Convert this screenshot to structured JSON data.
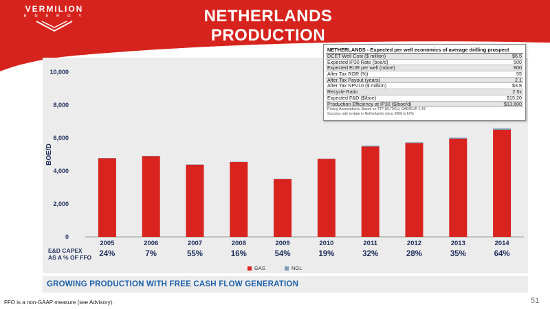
{
  "header": {
    "logo_name": "VERMILION",
    "logo_sub": "E N E R G Y",
    "title": "NETHERLANDS PRODUCTION"
  },
  "table": {
    "title": "NETHERLANDS - Expected per well economics of average drilling prospect",
    "rows": [
      {
        "label": "DCET Well Cost ($ million)",
        "value": "$6.5"
      },
      {
        "label": "Expected IP30 Rate (boe/d)",
        "value": "500"
      },
      {
        "label": "Expected EUR per well (mboe)",
        "value": "800"
      },
      {
        "label": "After Tax ROR (%)",
        "value": "55"
      },
      {
        "label": "After Tax Payout (years)",
        "value": "2.1"
      },
      {
        "label": "After Tax NPV10 ($ million)",
        "value": "$3.8"
      },
      {
        "label": "Recycle Ratio",
        "value": "2.5x"
      },
      {
        "label": "Expected F&D ($/boe)",
        "value": "$15.20"
      },
      {
        "label": "Production Efficiency at IP30 ($/boe/d)",
        "value": "$13,600"
      }
    ],
    "note1": "Pricing Assumptions: Based on TTF $9.70/GJ; CAD/EUR 1.43",
    "note2": "Success rate to-date in Netherlands since 2006 is 61%"
  },
  "chart_data": {
    "type": "bar",
    "categories": [
      "2005",
      "2006",
      "2007",
      "2008",
      "2009",
      "2010",
      "2011",
      "2012",
      "2013",
      "2014"
    ],
    "series": [
      {
        "name": "GAS",
        "values": [
          4770,
          4900,
          4380,
          4540,
          3500,
          4730,
          5480,
          5700,
          5960,
          6500
        ]
      },
      {
        "name": "NGL",
        "values": [
          20,
          20,
          20,
          20,
          20,
          20,
          60,
          40,
          60,
          80
        ]
      }
    ],
    "ylabel": "BOE/D",
    "ylim": [
      0,
      10000
    ],
    "yticks": [
      "0",
      "2,000",
      "4,000",
      "6,000",
      "8,000",
      "10,000"
    ],
    "stacked": true,
    "grid": false,
    "legend_position": "bottom-center",
    "colors": {
      "GAS": "#d8231e",
      "NGL": "#7f9db8"
    }
  },
  "capex": {
    "label_line1": "E&D CAPEX",
    "label_line2": "AS A % OF FFO",
    "values": [
      "24%",
      "7%",
      "55%",
      "16%",
      "54%",
      "19%",
      "32%",
      "28%",
      "35%",
      "64%"
    ]
  },
  "footer": {
    "tagline": "GROWING PRODUCTION WITH FREE CASH FLOW GENERATION",
    "footnote": "FFO is a non-GAAP measure (see Advisory).",
    "page_number": "51"
  }
}
